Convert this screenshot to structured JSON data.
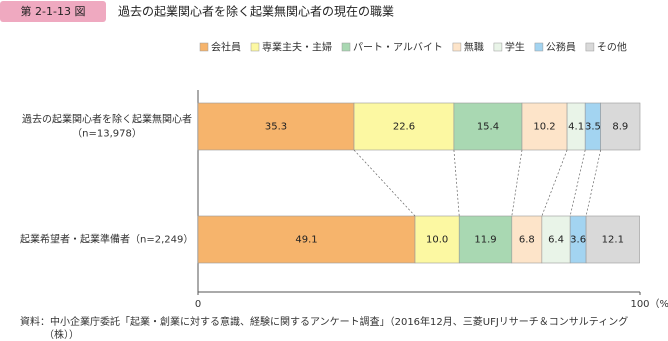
{
  "chart_data": {
    "type": "stacked-bar-horizontal",
    "figure_label": "第 2-1-13 図",
    "title": "過去の起業関心者を除く起業無関心者の現在の職業",
    "categories": [
      "過去の起業関心者を除く起業無関心者",
      "起業希望者・起業準備者"
    ],
    "sample_sizes": [
      "（n=13,978）",
      "（n=2,249）"
    ],
    "series": [
      {
        "name": "会社員",
        "color": "#f6b46c",
        "values": [
          35.3,
          49.1
        ]
      },
      {
        "name": "専業主夫・主婦",
        "color": "#fcf8a2",
        "values": [
          22.6,
          10.0
        ],
        "value_labels": [
          "22.6",
          "10.0"
        ]
      },
      {
        "name": "パート・アルバイト",
        "color": "#a9d8b2",
        "values": [
          15.4,
          11.9
        ]
      },
      {
        "name": "無職",
        "color": "#fde4c9",
        "values": [
          10.2,
          6.8
        ]
      },
      {
        "name": "学生",
        "color": "#e9f4e8",
        "values": [
          4.1,
          6.4
        ]
      },
      {
        "name": "公務員",
        "color": "#a3d4f1",
        "values": [
          3.5,
          3.6
        ]
      },
      {
        "name": "その他",
        "color": "#d9d9d9",
        "values": [
          8.9,
          12.1
        ]
      }
    ],
    "xlim": [
      0,
      100
    ],
    "xticks": [
      0,
      100
    ],
    "x_unit": "（%）",
    "source": [
      "資料：中小企業庁委託「起業・創業に対する意識、経験に関するアンケート調査」（2016年12月、三菱UFJリサーチ＆コンサルティング",
      "（株））"
    ]
  }
}
